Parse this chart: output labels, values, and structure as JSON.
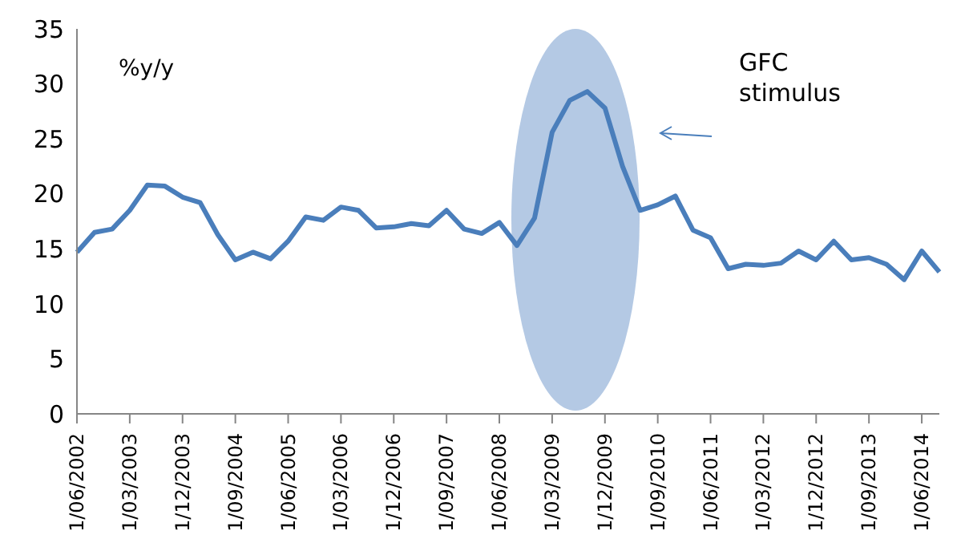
{
  "chart_data": {
    "type": "line",
    "ylabel": "%y/y",
    "annotations": [
      "GFC stimulus"
    ],
    "categories": [
      "1/06/2002",
      null,
      null,
      "1/03/2003",
      null,
      null,
      "1/12/2003",
      null,
      null,
      "1/09/2004",
      null,
      null,
      "1/06/2005",
      null,
      null,
      "1/03/2006",
      null,
      null,
      "1/12/2006",
      null,
      null,
      "1/09/2007",
      null,
      null,
      "1/06/2008",
      null,
      null,
      "1/03/2009",
      null,
      null,
      "1/12/2009",
      null,
      null,
      "1/09/2010",
      null,
      null,
      "1/06/2011",
      null,
      null,
      "1/03/2012",
      null,
      null,
      "1/12/2012",
      null,
      null,
      "1/09/2013",
      null,
      null,
      "1/06/2014",
      null
    ],
    "series": [
      {
        "color": "#4a7ebb",
        "values": [
          14.7,
          16.5,
          16.8,
          18.5,
          20.8,
          20.7,
          19.7,
          19.2,
          16.3,
          14.0,
          14.7,
          14.1,
          15.7,
          17.9,
          17.6,
          18.8,
          18.5,
          16.9,
          17.0,
          17.3,
          17.1,
          18.5,
          16.8,
          16.4,
          17.4,
          15.3,
          17.8,
          25.6,
          28.5,
          29.3,
          27.8,
          22.5,
          18.5,
          19.0,
          19.8,
          16.7,
          16.0,
          13.2,
          13.6,
          13.5,
          13.7,
          14.8,
          14.0,
          15.7,
          14.0,
          14.2,
          13.6,
          12.2,
          14.8,
          12.9
        ]
      }
    ],
    "ylim": [
      0,
      35
    ],
    "yticks": [
      0,
      5,
      10,
      15,
      20,
      25,
      30,
      35
    ],
    "grid": false,
    "legend": false,
    "marker": "none",
    "line_style": "solid"
  }
}
